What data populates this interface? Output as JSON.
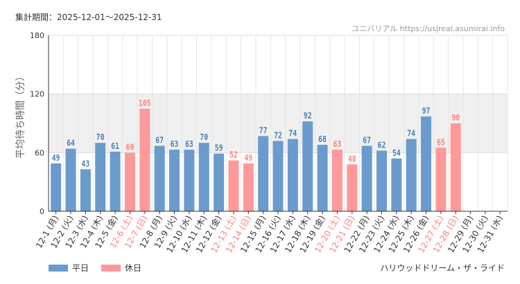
{
  "header": {
    "period": "集計期間：2025-12-01〜2025-12-31",
    "source": "ユニバリアル https://usjreal.asumirai.info"
  },
  "footer": {
    "attraction": "ハリウッドドリーム・ザ・ライド"
  },
  "colors": {
    "weekday": "#6b9bcc",
    "holiday": "#ff9999",
    "weekday_text": "#4a7fb8",
    "holiday_text": "#ff7f7f",
    "band": "#f0f0f0"
  },
  "chart_data": {
    "type": "bar",
    "ylabel": "平均待ち時間（分）",
    "ylim": [
      0,
      180
    ],
    "yticks": [
      "0",
      "60",
      "120",
      "180"
    ],
    "highlight_band": [
      60,
      120
    ],
    "categories": [
      "12-1 (月)",
      "12-2 (火)",
      "12-3 (水)",
      "12-4 (木)",
      "12-5 (金)",
      "12-6 (土)",
      "12-7 (日)",
      "12-8 (月)",
      "12-9 (火)",
      "12-10 (水)",
      "12-11 (木)",
      "12-12 (金)",
      "12-13 (土)",
      "12-14 (日)",
      "12-15 (月)",
      "12-16 (火)",
      "12-17 (水)",
      "12-18 (木)",
      "12-19 (金)",
      "12-20 (土)",
      "12-21 (日)",
      "12-22 (月)",
      "12-23 (火)",
      "12-24 (水)",
      "12-25 (木)",
      "12-26 (金)",
      "12-27 (土)",
      "12-28 (日)",
      "12-29 (月)",
      "12-30 (火)",
      "12-31 (水)"
    ],
    "values": [
      49,
      64,
      43,
      70,
      61,
      60,
      105,
      67,
      63,
      63,
      70,
      59,
      52,
      49,
      77,
      72,
      74,
      92,
      68,
      63,
      48,
      67,
      62,
      54,
      74,
      97,
      65,
      90,
      null,
      null,
      null
    ],
    "value_labels": [
      "49",
      "64",
      "43",
      "70",
      "61",
      "60",
      "105",
      "67",
      "63",
      "63",
      "70",
      "59",
      "52",
      "49",
      "77",
      "72",
      "74",
      "92",
      "68",
      "63",
      "48",
      "67",
      "62",
      "54",
      "74",
      "97",
      "65",
      "90",
      "",
      "",
      ""
    ],
    "day_type": [
      "w",
      "w",
      "w",
      "w",
      "w",
      "h",
      "h",
      "w",
      "w",
      "w",
      "w",
      "w",
      "h",
      "h",
      "w",
      "w",
      "w",
      "w",
      "w",
      "h",
      "h",
      "w",
      "w",
      "w",
      "w",
      "w",
      "h",
      "h",
      "w",
      "w",
      "w"
    ],
    "legend": [
      {
        "name": "平日",
        "key": "weekday"
      },
      {
        "name": "休日",
        "key": "holiday"
      }
    ]
  }
}
